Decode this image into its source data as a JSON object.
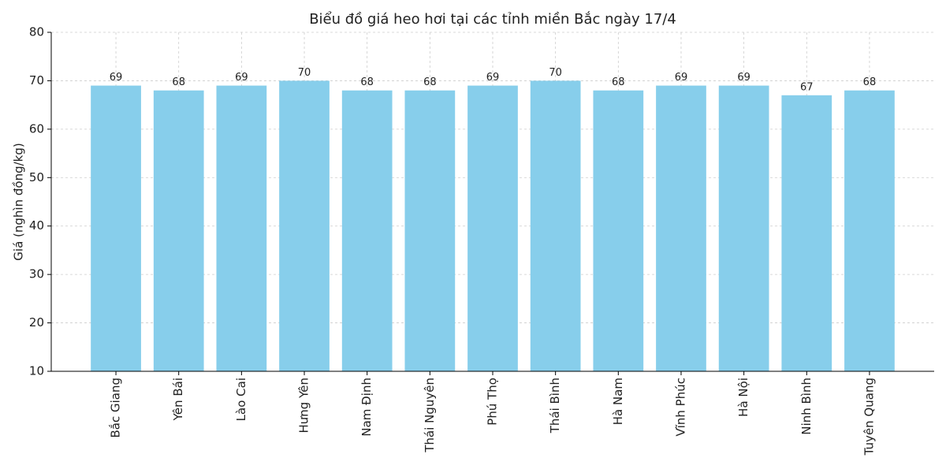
{
  "chart_data": {
    "type": "bar",
    "title": "Biểu đồ giá heo hơi tại các tỉnh miền Bắc ngày 17/4",
    "y_label": "Giá (nghìn đồng/kg)",
    "categories": [
      "Bắc Giang",
      "Yên Bái",
      "Lào Cai",
      "Hưng Yên",
      "Nam Định",
      "Thái Nguyên",
      "Phú Thọ",
      "Thái Bình",
      "Hà Nam",
      "Vĩnh Phúc",
      "Hà Nội",
      "Ninh Bình",
      "Tuyên Quang"
    ],
    "values": [
      69,
      68,
      69,
      70,
      68,
      68,
      69,
      70,
      68,
      69,
      69,
      67,
      68
    ],
    "color": "#87ceeb",
    "ylim": [
      10,
      80
    ],
    "yticks": [
      10,
      20,
      30,
      40,
      50,
      60,
      70,
      80
    ],
    "grid": true
  }
}
